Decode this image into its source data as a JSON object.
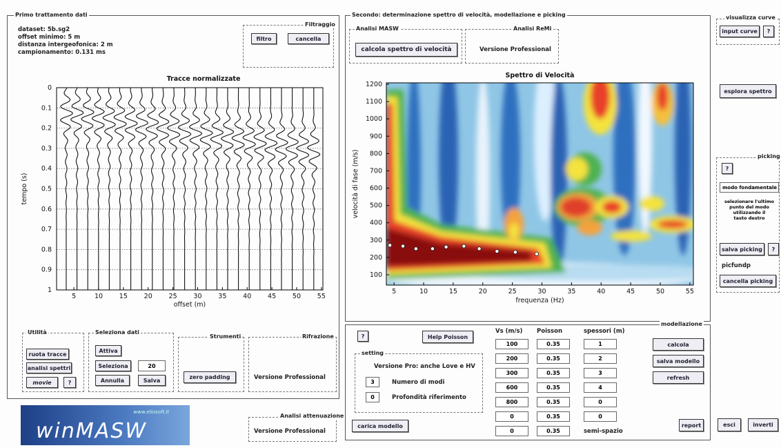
{
  "left_panel": {
    "title": "Primo trattamento dati",
    "dataset_info": [
      "dataset: 5b.sg2",
      "offset minimo: 5 m",
      "distanza intergeofonica: 2 m",
      "campionamento: 0.131 ms"
    ],
    "filter_group": {
      "title": "Filtraggio",
      "buttons": [
        "filtro",
        "cancella"
      ]
    },
    "traces_plot": {
      "title": "Tracce normalizzate",
      "ylabel": "tempo (s)",
      "xlabel": "offset (m)",
      "xlim": [
        1.5,
        55.3
      ],
      "ylim": [
        0,
        1
      ],
      "xticks": [
        5,
        10,
        15,
        20,
        25,
        30,
        35,
        40,
        45,
        50,
        55
      ],
      "yticks": [
        0,
        0.1,
        0.2,
        0.3,
        0.4,
        0.5,
        0.6,
        0.7,
        0.8,
        0.9,
        1
      ]
    },
    "utility_group": {
      "title": "Utilità",
      "buttons": [
        "ruota tracce",
        "analisi spettri",
        "movie",
        "?"
      ]
    },
    "selection_group": {
      "title": "Seleziona dati",
      "buttons": [
        "Attiva",
        "Seleziona",
        "Annulla",
        "Salva"
      ],
      "value": "20"
    },
    "tools_group": {
      "title": "Strumenti",
      "buttons": [
        "zero padding"
      ]
    },
    "refraction_group": {
      "title": "Rifrazione",
      "text": "Versione Professional"
    }
  },
  "logo": {
    "url": "www.eliosoft.it",
    "name": "winMASW"
  },
  "attenuation_group": {
    "title": "Analisi attenuazione",
    "text": "Versione Professional"
  },
  "center_panel": {
    "title": "Secondo: determinazione spettro di velocità, modellazione e picking",
    "masw_group": {
      "title": "Analisi MASW",
      "button": "calcola spettro di velocità"
    },
    "remi_group": {
      "title": "Analisi ReMi",
      "text": "Versione Professional"
    },
    "spectrum_plot": {
      "title": "Spettro di Velocità",
      "ylabel": "velocità di fase (m/s)",
      "xlabel": "frequenza (Hz)",
      "xlim": [
        3.7,
        55.6
      ],
      "ylim": [
        40,
        1208
      ],
      "xticks": [
        5,
        10,
        15,
        20,
        25,
        30,
        35,
        40,
        45,
        50,
        55
      ],
      "yticks": [
        100,
        200,
        300,
        400,
        500,
        600,
        700,
        800,
        900,
        1000,
        1100,
        1200
      ],
      "picks": {
        "x": [
          4.3,
          6.5,
          8.7,
          11.5,
          13.8,
          16.8,
          19.4,
          22.4,
          25.5,
          29.1
        ],
        "y": [
          270,
          265,
          250,
          250,
          260,
          265,
          250,
          235,
          230,
          220
        ]
      }
    }
  },
  "modelling_panel": {
    "title": "modellazione",
    "help": "?",
    "help_poisson": "Help Poisson",
    "setting": {
      "title": "setting",
      "text": "Versione Pro: anche Love e HV",
      "modes_value": "3",
      "modes_label": "Numero di modi",
      "depth_value": "0",
      "depth_label": "Profondità riferimento"
    },
    "load_button": "carica modello",
    "table": {
      "columns": [
        "Vs (m/s)",
        "Poisson",
        "spessori (m)"
      ],
      "rows": [
        [
          "100",
          "0.35",
          "1"
        ],
        [
          "200",
          "0.35",
          "2"
        ],
        [
          "300",
          "0.35",
          "3"
        ],
        [
          "600",
          "0.35",
          "4"
        ],
        [
          "800",
          "0.35",
          "0"
        ],
        [
          "0",
          "0.35",
          "0"
        ],
        [
          "0",
          "0.35",
          "semi-spazio"
        ]
      ]
    },
    "buttons": [
      "calcola",
      "salva modello",
      "refresh",
      "report"
    ]
  },
  "right_panel": {
    "curves_group": {
      "title": "visualizza curve",
      "buttons": [
        "input curve",
        "?"
      ]
    },
    "explore_button": "esplora spettro",
    "picking_group": {
      "title": "picking",
      "help": "?",
      "mode": "modo fondamentale",
      "instructions": [
        "selezionare l'ultimo",
        "punto del modo",
        "utilizzando il",
        "tasto destro"
      ],
      "save_button": "salva picking",
      "save_help": "?",
      "file": "picfundp",
      "clear_button": "cancella picking"
    },
    "exit_button": "esci",
    "invert_button": "inverti"
  }
}
